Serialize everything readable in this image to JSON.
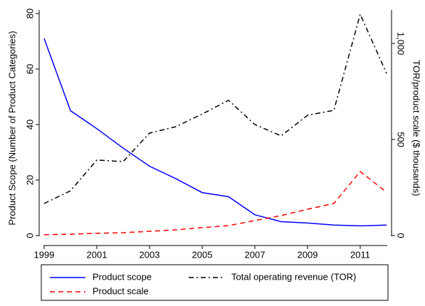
{
  "chart_data": {
    "type": "line",
    "y_label": "Product Scope (Number of Product Categories)",
    "y2_label": "TOR/product scale ($ thousands)",
    "x": [
      1999,
      2000,
      2001,
      2002,
      2003,
      2004,
      2005,
      2006,
      2007,
      2008,
      2009,
      2010,
      2011,
      2012
    ],
    "xlim": [
      1999,
      2012
    ],
    "xticks": [
      1999,
      2001,
      2003,
      2005,
      2007,
      2009,
      2011
    ],
    "ylim": [
      0,
      80
    ],
    "yticks": [
      0,
      20,
      40,
      60,
      80
    ],
    "y2lim": [
      0,
      1156
    ],
    "y2ticks": [
      0,
      500,
      {
        "value": 1000,
        "label": "1,000"
      }
    ],
    "series": [
      {
        "name": "Product scope",
        "color": "#0000ff",
        "dash": "none",
        "values": [
          71,
          45,
          38.5,
          31.5,
          25,
          20.5,
          15.5,
          14,
          7.5,
          5,
          4.5,
          3.8,
          3.5,
          3.8
        ]
      },
      {
        "name": "Total operating revenue (TOR)",
        "color": "#000000",
        "dash": "7,4,2,4",
        "axis": "y2",
        "values": [
          167,
          233,
          393,
          385,
          533,
          567,
          633,
          704,
          578,
          519,
          626,
          652,
          1152,
          844
        ]
      },
      {
        "name": "Product scale",
        "color": "#ff0000",
        "dash": "7,5",
        "axis": "y2",
        "values": [
          4,
          7,
          12,
          15,
          22,
          30,
          41,
          52,
          78,
          104,
          137,
          167,
          333,
          226
        ]
      }
    ]
  }
}
